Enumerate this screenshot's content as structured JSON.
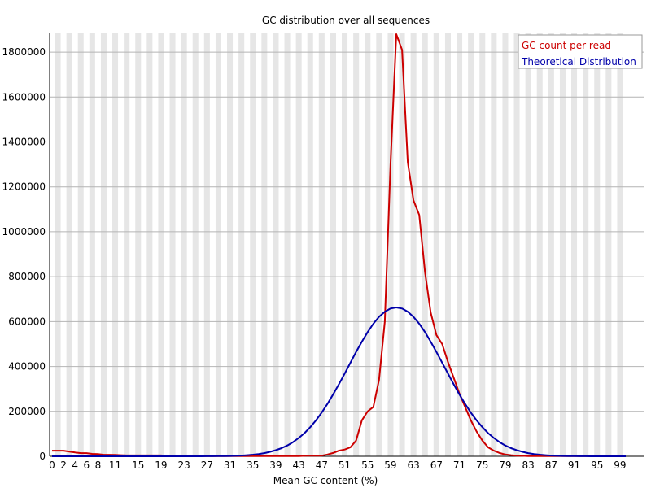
{
  "chart_data": {
    "type": "line",
    "title": "GC distribution over all sequences",
    "xlabel": "Mean GC content (%)",
    "ylabel": "",
    "xlim": [
      0,
      100
    ],
    "ylim": [
      0,
      1880000
    ],
    "grid": true,
    "legend_position": "top-right",
    "x_ticks": [
      "0",
      "2",
      "4",
      "6",
      "8",
      "11",
      "15",
      "19",
      "23",
      "27",
      "31",
      "35",
      "39",
      "43",
      "47",
      "51",
      "55",
      "59",
      "63",
      "67",
      "71",
      "75",
      "79",
      "83",
      "87",
      "91",
      "95",
      "99"
    ],
    "y_ticks": [
      "0",
      "200000",
      "400000",
      "600000",
      "800000",
      "1000000",
      "1200000",
      "1400000",
      "1600000",
      "1800000"
    ],
    "series": [
      {
        "name": "GC count per read",
        "color": "#cc0000",
        "points": [
          [
            0,
            25000
          ],
          [
            1,
            25000
          ],
          [
            2,
            25000
          ],
          [
            3,
            21000
          ],
          [
            4,
            17000
          ],
          [
            5,
            14000
          ],
          [
            6,
            14000
          ],
          [
            7,
            11000
          ],
          [
            8,
            10000
          ],
          [
            9,
            7000
          ],
          [
            10,
            7000
          ],
          [
            11,
            6000
          ],
          [
            12,
            5000
          ],
          [
            13,
            4000
          ],
          [
            14,
            4000
          ],
          [
            15,
            4000
          ],
          [
            16,
            4000
          ],
          [
            17,
            4000
          ],
          [
            18,
            4000
          ],
          [
            19,
            4000
          ],
          [
            20,
            2000
          ],
          [
            21,
            1500
          ],
          [
            22,
            1000
          ],
          [
            23,
            1000
          ],
          [
            24,
            1000
          ],
          [
            25,
            1000
          ],
          [
            26,
            1000
          ],
          [
            27,
            1000
          ],
          [
            28,
            1000
          ],
          [
            29,
            1000
          ],
          [
            30,
            1000
          ],
          [
            31,
            1000
          ],
          [
            32,
            1000
          ],
          [
            33,
            1000
          ],
          [
            34,
            1000
          ],
          [
            35,
            1000
          ],
          [
            36,
            1000
          ],
          [
            37,
            1000
          ],
          [
            38,
            1000
          ],
          [
            39,
            1000
          ],
          [
            40,
            1000
          ],
          [
            41,
            1000
          ],
          [
            42,
            1000
          ],
          [
            43,
            1000
          ],
          [
            44,
            2000
          ],
          [
            45,
            3000
          ],
          [
            46,
            3000
          ],
          [
            47,
            3000
          ],
          [
            48,
            8000
          ],
          [
            49,
            15000
          ],
          [
            50,
            25000
          ],
          [
            51,
            30000
          ],
          [
            52,
            40000
          ],
          [
            53,
            70000
          ],
          [
            54,
            160000
          ],
          [
            55,
            200000
          ],
          [
            56,
            220000
          ],
          [
            57,
            340000
          ],
          [
            58,
            600000
          ],
          [
            59,
            1300000
          ],
          [
            60,
            1880000
          ],
          [
            61,
            1810000
          ],
          [
            62,
            1310000
          ],
          [
            63,
            1140000
          ],
          [
            64,
            1075000
          ],
          [
            65,
            820000
          ],
          [
            66,
            640000
          ],
          [
            67,
            540000
          ],
          [
            68,
            500000
          ],
          [
            69,
            420000
          ],
          [
            70,
            350000
          ],
          [
            71,
            280000
          ],
          [
            72,
            220000
          ],
          [
            73,
            160000
          ],
          [
            74,
            110000
          ],
          [
            75,
            70000
          ],
          [
            76,
            40000
          ],
          [
            77,
            25000
          ],
          [
            78,
            15000
          ],
          [
            79,
            8000
          ],
          [
            80,
            5000
          ],
          [
            81,
            3000
          ],
          [
            82,
            2000
          ],
          [
            83,
            1000
          ],
          [
            84,
            1000
          ],
          [
            85,
            1000
          ],
          [
            86,
            1000
          ],
          [
            87,
            1000
          ],
          [
            88,
            1000
          ],
          [
            89,
            1000
          ],
          [
            90,
            1000
          ],
          [
            91,
            1000
          ],
          [
            92,
            1000
          ],
          [
            93,
            1000
          ],
          [
            94,
            1000
          ],
          [
            95,
            1000
          ],
          [
            96,
            1000
          ],
          [
            97,
            1000
          ],
          [
            98,
            1000
          ],
          [
            99,
            1000
          ],
          [
            100,
            1000
          ]
        ]
      },
      {
        "name": "Theoretical Distribution",
        "color": "#0000aa",
        "mean": 60,
        "sd": 8.3,
        "peak": 663000,
        "points": []
      }
    ]
  }
}
